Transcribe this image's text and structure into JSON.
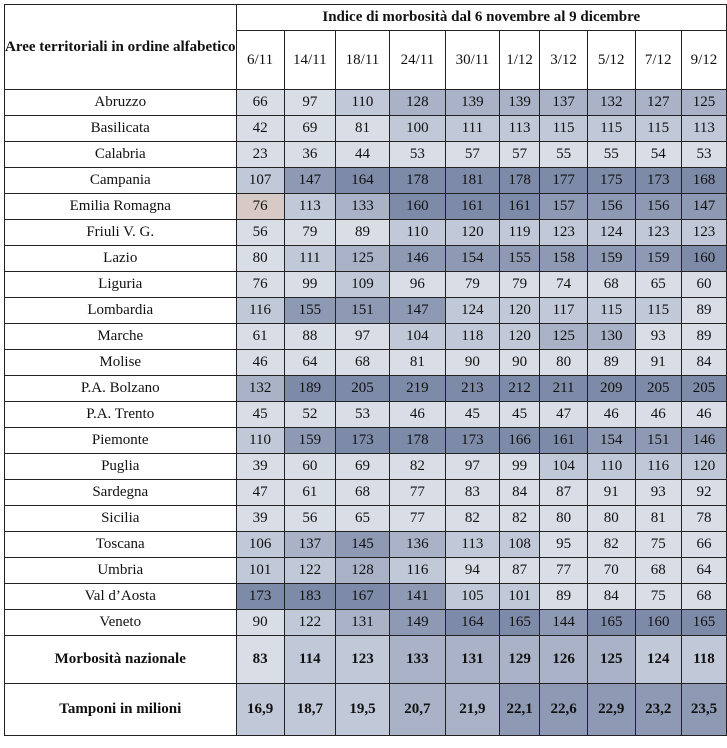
{
  "table": {
    "corner_header": "Aree territoriali in ordine alfabetico",
    "group_header": "Indice di morbosità dal 6 novembre al 9 dicembre",
    "dates": [
      "6/11",
      "14/11",
      "18/11",
      "24/11",
      "30/11",
      "1/12",
      "3/12",
      "5/12",
      "7/12",
      "9/12"
    ],
    "rows": [
      {
        "name": "Abruzzo",
        "values": [
          66,
          97,
          110,
          128,
          139,
          139,
          137,
          132,
          127,
          125
        ]
      },
      {
        "name": "Basilicata",
        "values": [
          42,
          69,
          81,
          100,
          111,
          113,
          115,
          115,
          115,
          113
        ]
      },
      {
        "name": "Calabria",
        "values": [
          23,
          36,
          44,
          53,
          57,
          57,
          55,
          55,
          54,
          53
        ]
      },
      {
        "name": "Campania",
        "values": [
          107,
          147,
          164,
          178,
          181,
          178,
          177,
          175,
          173,
          168
        ]
      },
      {
        "name": "Emilia Romagna",
        "values": [
          76,
          113,
          133,
          160,
          161,
          161,
          157,
          156,
          156,
          147
        ]
      },
      {
        "name": "Friuli V. G.",
        "values": [
          56,
          79,
          89,
          110,
          120,
          119,
          123,
          124,
          123,
          123
        ]
      },
      {
        "name": "Lazio",
        "values": [
          80,
          111,
          125,
          146,
          154,
          155,
          158,
          159,
          159,
          160
        ]
      },
      {
        "name": "Liguria",
        "values": [
          76,
          99,
          109,
          96,
          79,
          79,
          74,
          68,
          65,
          60
        ]
      },
      {
        "name": "Lombardia",
        "values": [
          116,
          155,
          151,
          147,
          124,
          120,
          117,
          115,
          115,
          89
        ]
      },
      {
        "name": "Marche",
        "values": [
          61,
          88,
          97,
          104,
          118,
          120,
          125,
          130,
          93,
          89
        ]
      },
      {
        "name": "Molise",
        "values": [
          46,
          64,
          68,
          81,
          90,
          90,
          80,
          89,
          91,
          84
        ]
      },
      {
        "name": "P.A. Bolzano",
        "values": [
          132,
          189,
          205,
          219,
          213,
          212,
          211,
          209,
          205,
          205
        ]
      },
      {
        "name": "P.A. Trento",
        "values": [
          45,
          52,
          53,
          46,
          45,
          45,
          47,
          46,
          46,
          46
        ]
      },
      {
        "name": "Piemonte",
        "values": [
          110,
          159,
          173,
          178,
          173,
          166,
          161,
          154,
          151,
          146
        ]
      },
      {
        "name": "Puglia",
        "values": [
          39,
          60,
          69,
          82,
          97,
          99,
          104,
          110,
          116,
          120
        ]
      },
      {
        "name": "Sardegna",
        "values": [
          47,
          61,
          68,
          77,
          83,
          84,
          87,
          91,
          93,
          92
        ]
      },
      {
        "name": "Sicilia",
        "values": [
          39,
          56,
          65,
          77,
          82,
          82,
          80,
          80,
          81,
          78
        ]
      },
      {
        "name": "Toscana",
        "values": [
          106,
          137,
          145,
          136,
          113,
          108,
          95,
          82,
          75,
          66
        ]
      },
      {
        "name": "Umbria",
        "values": [
          101,
          122,
          128,
          116,
          94,
          87,
          77,
          70,
          68,
          64
        ]
      },
      {
        "name": "Val d’Aosta",
        "values": [
          173,
          183,
          167,
          141,
          105,
          101,
          89,
          84,
          75,
          68
        ]
      },
      {
        "name": "Veneto",
        "values": [
          90,
          122,
          131,
          149,
          164,
          165,
          144,
          165,
          160,
          165
        ]
      }
    ],
    "national": {
      "label": "Morbosità nazionale",
      "values": [
        83,
        114,
        123,
        133,
        131,
        129,
        126,
        125,
        124,
        118
      ]
    },
    "swabs": {
      "label": "Tamponi in milioni",
      "values": [
        "16,9",
        "18,7",
        "19,5",
        "20,7",
        "21,9",
        "22,1",
        "22,6",
        "22,9",
        "23,2",
        "23,5"
      ]
    }
  }
}
